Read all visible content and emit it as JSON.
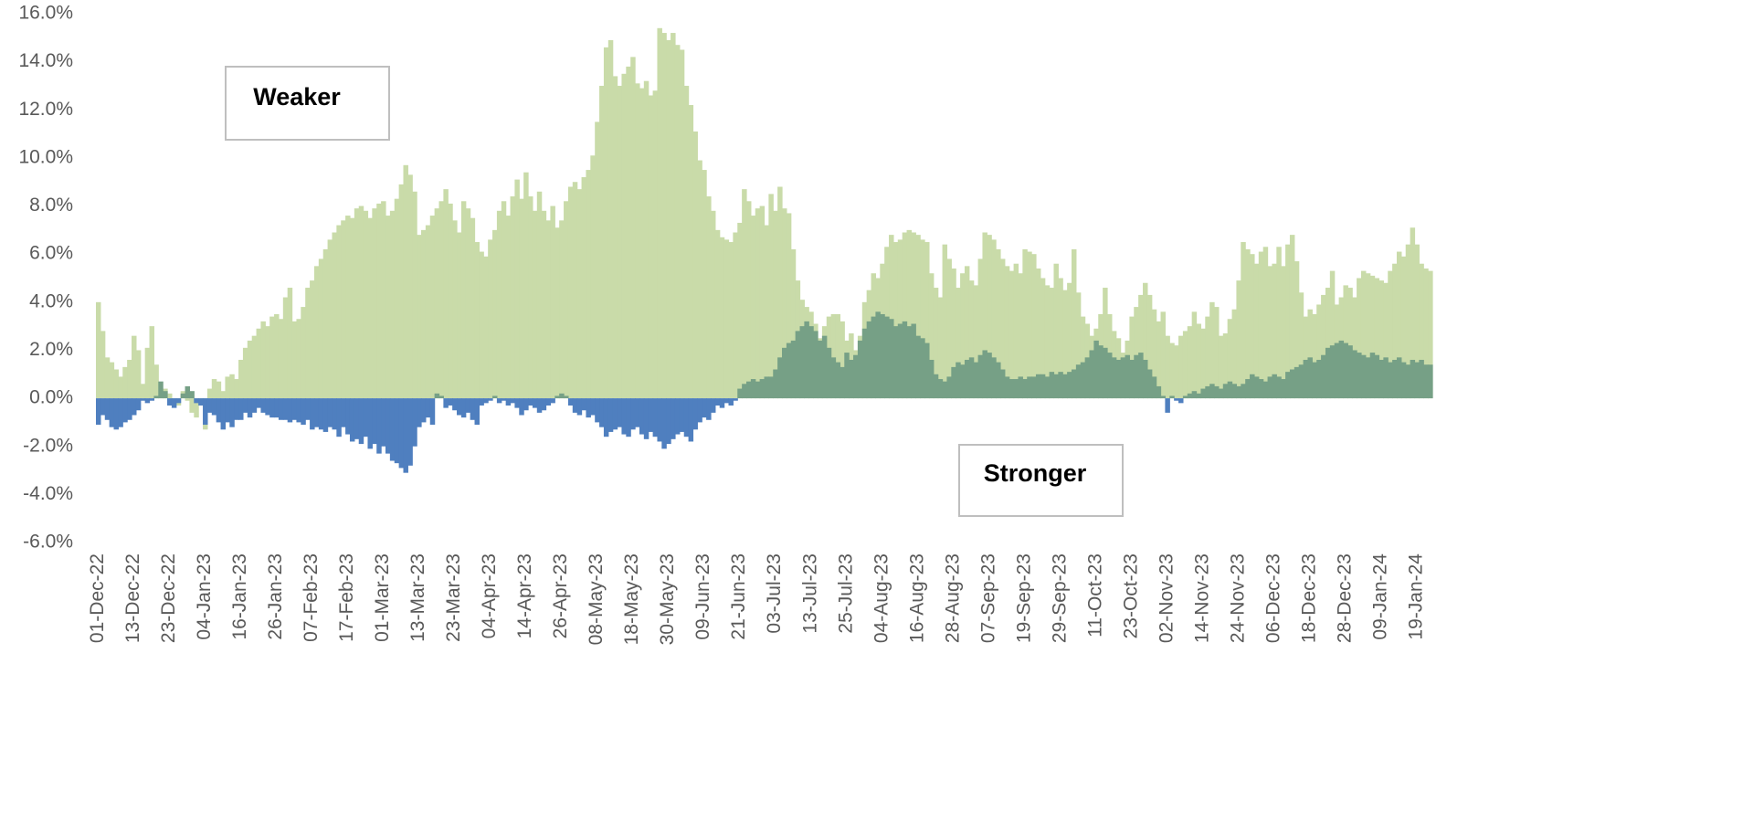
{
  "chart_data": {
    "type": "bar",
    "annotations": [
      "Weaker",
      "Stronger"
    ],
    "categories": [
      "01-Dec-22",
      null,
      null,
      null,
      null,
      null,
      null,
      null,
      "13-Dec-22",
      null,
      null,
      null,
      null,
      null,
      null,
      null,
      "23-Dec-22",
      null,
      null,
      null,
      null,
      null,
      null,
      null,
      "04-Jan-23",
      null,
      null,
      null,
      null,
      null,
      null,
      null,
      "16-Jan-23",
      null,
      null,
      null,
      null,
      null,
      null,
      null,
      "26-Jan-23",
      null,
      null,
      null,
      null,
      null,
      null,
      null,
      "07-Feb-23",
      null,
      null,
      null,
      null,
      null,
      null,
      null,
      "17-Feb-23",
      null,
      null,
      null,
      null,
      null,
      null,
      null,
      "01-Mar-23",
      null,
      null,
      null,
      null,
      null,
      null,
      null,
      "13-Mar-23",
      null,
      null,
      null,
      null,
      null,
      null,
      null,
      "23-Mar-23",
      null,
      null,
      null,
      null,
      null,
      null,
      null,
      "04-Apr-23",
      null,
      null,
      null,
      null,
      null,
      null,
      null,
      "14-Apr-23",
      null,
      null,
      null,
      null,
      null,
      null,
      null,
      "26-Apr-23",
      null,
      null,
      null,
      null,
      null,
      null,
      null,
      "08-May-23",
      null,
      null,
      null,
      null,
      null,
      null,
      null,
      "18-May-23",
      null,
      null,
      null,
      null,
      null,
      null,
      null,
      "30-May-23",
      null,
      null,
      null,
      null,
      null,
      null,
      null,
      "09-Jun-23",
      null,
      null,
      null,
      null,
      null,
      null,
      null,
      "21-Jun-23",
      null,
      null,
      null,
      null,
      null,
      null,
      null,
      "03-Jul-23",
      null,
      null,
      null,
      null,
      null,
      null,
      null,
      "13-Jul-23",
      null,
      null,
      null,
      null,
      null,
      null,
      null,
      "25-Jul-23",
      null,
      null,
      null,
      null,
      null,
      null,
      null,
      "04-Aug-23",
      null,
      null,
      null,
      null,
      null,
      null,
      null,
      "16-Aug-23",
      null,
      null,
      null,
      null,
      null,
      null,
      null,
      "28-Aug-23",
      null,
      null,
      null,
      null,
      null,
      null,
      null,
      "07-Sep-23",
      null,
      null,
      null,
      null,
      null,
      null,
      null,
      "19-Sep-23",
      null,
      null,
      null,
      null,
      null,
      null,
      null,
      "29-Sep-23",
      null,
      null,
      null,
      null,
      null,
      null,
      null,
      "11-Oct-23",
      null,
      null,
      null,
      null,
      null,
      null,
      null,
      "23-Oct-23",
      null,
      null,
      null,
      null,
      null,
      null,
      null,
      "02-Nov-23",
      null,
      null,
      null,
      null,
      null,
      null,
      null,
      "14-Nov-23",
      null,
      null,
      null,
      null,
      null,
      null,
      null,
      "24-Nov-23",
      null,
      null,
      null,
      null,
      null,
      null,
      null,
      "06-Dec-23",
      null,
      null,
      null,
      null,
      null,
      null,
      null,
      "18-Dec-23",
      null,
      null,
      null,
      null,
      null,
      null,
      null,
      "28-Dec-23",
      null,
      null,
      null,
      null,
      null,
      null,
      null,
      "09-Jan-24",
      null,
      null,
      null,
      null,
      null,
      null,
      null,
      "19-Jan-24",
      null,
      null,
      null
    ],
    "series": [
      {
        "color": "#c9dba9",
        "values": [
          4.0,
          2.8,
          1.7,
          1.5,
          1.2,
          0.9,
          1.3,
          1.6,
          2.6,
          2.0,
          0.6,
          2.1,
          3.0,
          1.4,
          0.3,
          0.4,
          0.2,
          -0.2,
          -0.3,
          0.3,
          -0.1,
          -0.6,
          -0.8,
          -0.3,
          -1.3,
          0.4,
          0.8,
          0.7,
          0.3,
          0.9,
          1.0,
          0.8,
          1.6,
          2.1,
          2.4,
          2.6,
          2.9,
          3.2,
          3.0,
          3.4,
          3.5,
          3.3,
          4.2,
          4.6,
          3.2,
          3.3,
          3.8,
          4.6,
          4.9,
          5.5,
          5.8,
          6.2,
          6.6,
          6.9,
          7.2,
          7.4,
          7.6,
          7.5,
          7.9,
          8.0,
          7.8,
          7.5,
          7.9,
          8.1,
          8.2,
          7.6,
          7.8,
          8.3,
          8.9,
          9.7,
          9.3,
          8.6,
          6.8,
          7.0,
          7.2,
          7.6,
          7.9,
          8.2,
          8.7,
          8.1,
          7.4,
          6.9,
          8.2,
          7.9,
          7.5,
          6.5,
          6.1,
          5.9,
          6.6,
          7.0,
          7.8,
          8.2,
          7.6,
          8.4,
          9.1,
          8.3,
          9.4,
          8.4,
          7.8,
          8.6,
          7.8,
          7.4,
          8.0,
          7.1,
          7.4,
          8.2,
          8.8,
          9.0,
          8.7,
          9.2,
          9.5,
          10.1,
          11.5,
          13.0,
          14.6,
          14.9,
          13.4,
          13.0,
          13.5,
          13.8,
          14.2,
          13.1,
          12.9,
          13.2,
          12.6,
          12.8,
          15.4,
          15.2,
          14.9,
          15.2,
          14.7,
          14.5,
          13.0,
          12.2,
          11.1,
          9.9,
          9.5,
          8.4,
          7.8,
          7.0,
          6.7,
          6.6,
          6.5,
          6.9,
          7.3,
          8.7,
          8.2,
          7.6,
          7.9,
          8.0,
          7.2,
          8.5,
          7.8,
          8.8,
          7.9,
          7.7,
          6.2,
          4.9,
          4.1,
          3.8,
          3.6,
          3.1,
          2.5,
          3.0,
          3.4,
          3.5,
          3.5,
          3.2,
          2.4,
          2.7,
          2.0,
          2.6,
          4.0,
          4.5,
          5.2,
          5.0,
          5.6,
          6.3,
          6.8,
          6.5,
          6.6,
          6.9,
          7.0,
          6.9,
          6.8,
          6.6,
          6.5,
          5.2,
          4.6,
          4.2,
          6.4,
          5.8,
          5.4,
          4.6,
          5.2,
          5.5,
          4.9,
          4.7,
          5.8,
          6.9,
          6.8,
          6.6,
          6.2,
          5.8,
          5.5,
          5.3,
          5.6,
          5.2,
          6.2,
          6.1,
          6.0,
          5.4,
          5.0,
          4.7,
          4.6,
          5.6,
          5.0,
          4.5,
          4.8,
          6.2,
          4.4,
          3.4,
          3.1,
          2.6,
          2.9,
          3.5,
          4.6,
          3.5,
          2.8,
          2.5,
          1.9,
          2.4,
          3.4,
          3.8,
          4.3,
          4.8,
          4.3,
          3.7,
          3.2,
          3.6,
          2.6,
          2.3,
          2.2,
          2.6,
          2.8,
          3.0,
          3.6,
          3.1,
          2.9,
          3.4,
          4.0,
          3.8,
          2.6,
          2.7,
          3.3,
          3.7,
          4.9,
          6.5,
          6.2,
          6.0,
          5.6,
          6.1,
          6.3,
          5.5,
          5.6,
          6.3,
          5.5,
          6.4,
          6.8,
          5.7,
          4.4,
          3.4,
          3.7,
          3.5,
          3.9,
          4.3,
          4.6,
          5.3,
          3.9,
          4.2,
          4.7,
          4.6,
          4.2,
          5.0,
          5.3,
          5.2,
          5.1,
          5.0,
          4.9,
          4.8,
          5.3,
          5.6,
          6.1,
          5.9,
          6.4,
          7.1,
          6.4,
          5.6,
          5.4,
          5.3
        ]
      },
      {
        "color": "#76a086",
        "negative_color": "#4f7fbf",
        "values": [
          -1.1,
          -0.7,
          -0.9,
          -1.2,
          -1.3,
          -1.2,
          -1.0,
          -0.9,
          -0.7,
          -0.5,
          -0.1,
          -0.2,
          -0.1,
          0.1,
          0.7,
          0.3,
          -0.3,
          -0.4,
          -0.2,
          0.2,
          0.5,
          0.3,
          -0.2,
          -0.3,
          -1.1,
          -0.6,
          -0.7,
          -1.0,
          -1.3,
          -1.0,
          -1.2,
          -0.9,
          -0.9,
          -0.6,
          -0.8,
          -0.6,
          -0.4,
          -0.6,
          -0.7,
          -0.8,
          -0.8,
          -0.9,
          -0.9,
          -1.0,
          -0.9,
          -1.0,
          -1.1,
          -0.9,
          -1.3,
          -1.2,
          -1.3,
          -1.4,
          -1.2,
          -1.3,
          -1.6,
          -1.2,
          -1.5,
          -1.8,
          -1.7,
          -1.9,
          -1.6,
          -2.1,
          -1.9,
          -2.3,
          -2.0,
          -2.3,
          -2.6,
          -2.7,
          -2.9,
          -3.1,
          -2.8,
          -2.0,
          -1.2,
          -1.0,
          -0.8,
          -1.1,
          0.2,
          0.1,
          -0.4,
          -0.3,
          -0.5,
          -0.7,
          -0.8,
          -0.6,
          -0.9,
          -1.1,
          -0.3,
          -0.2,
          -0.1,
          0.1,
          -0.2,
          -0.1,
          -0.3,
          -0.2,
          -0.4,
          -0.7,
          -0.5,
          -0.3,
          -0.4,
          -0.6,
          -0.5,
          -0.3,
          -0.2,
          0.1,
          0.2,
          0.1,
          -0.3,
          -0.6,
          -0.7,
          -0.5,
          -0.8,
          -0.7,
          -1.0,
          -1.2,
          -1.6,
          -1.4,
          -1.3,
          -1.2,
          -1.5,
          -1.6,
          -1.3,
          -1.2,
          -1.5,
          -1.7,
          -1.4,
          -1.6,
          -1.8,
          -2.1,
          -1.9,
          -1.7,
          -1.5,
          -1.4,
          -1.6,
          -1.8,
          -1.3,
          -1.0,
          -0.8,
          -0.9,
          -0.6,
          -0.3,
          -0.4,
          -0.2,
          -0.3,
          -0.1,
          0.4,
          0.6,
          0.7,
          0.8,
          0.7,
          0.8,
          0.9,
          0.9,
          1.2,
          1.7,
          2.1,
          2.3,
          2.4,
          2.8,
          3.0,
          3.2,
          3.0,
          2.8,
          2.4,
          2.6,
          2.1,
          1.7,
          1.5,
          1.3,
          1.9,
          1.6,
          1.8,
          2.4,
          2.9,
          3.2,
          3.4,
          3.6,
          3.5,
          3.4,
          3.3,
          3.0,
          3.1,
          3.2,
          3.0,
          3.1,
          2.6,
          2.5,
          2.3,
          1.6,
          1.0,
          0.8,
          0.7,
          0.9,
          1.3,
          1.5,
          1.4,
          1.6,
          1.7,
          1.5,
          1.8,
          2.0,
          1.9,
          1.7,
          1.5,
          1.2,
          0.9,
          0.8,
          0.8,
          0.9,
          0.8,
          0.9,
          0.9,
          1.0,
          1.0,
          0.9,
          1.1,
          1.0,
          1.1,
          1.0,
          1.1,
          1.2,
          1.4,
          1.5,
          1.7,
          2.0,
          2.4,
          2.2,
          2.1,
          1.9,
          1.7,
          1.6,
          1.7,
          1.8,
          1.6,
          1.8,
          1.9,
          1.6,
          1.2,
          0.9,
          0.5,
          0.1,
          -0.6,
          0.1,
          -0.1,
          -0.2,
          0.1,
          0.2,
          0.3,
          0.2,
          0.4,
          0.5,
          0.6,
          0.5,
          0.4,
          0.6,
          0.7,
          0.6,
          0.5,
          0.6,
          0.8,
          1.0,
          0.9,
          0.8,
          0.7,
          0.9,
          1.0,
          0.9,
          0.8,
          1.1,
          1.2,
          1.3,
          1.4,
          1.6,
          1.7,
          1.5,
          1.6,
          1.8,
          2.1,
          2.2,
          2.3,
          2.4,
          2.3,
          2.2,
          2.0,
          1.9,
          1.8,
          1.7,
          1.9,
          1.8,
          1.6,
          1.7,
          1.5,
          1.6,
          1.7,
          1.5,
          1.4,
          1.6,
          1.5,
          1.6,
          1.4,
          1.4
        ]
      }
    ],
    "ylim": [
      -6,
      16
    ],
    "yticks": [
      {
        "value": 16,
        "label": "16.0%"
      },
      {
        "value": 14,
        "label": "14.0%"
      },
      {
        "value": 12,
        "label": "12.0%"
      },
      {
        "value": 10,
        "label": "10.0%"
      },
      {
        "value": 8,
        "label": "8.0%"
      },
      {
        "value": 6,
        "label": "6.0%"
      },
      {
        "value": 4,
        "label": "4.0%"
      },
      {
        "value": 2,
        "label": "2.0%"
      },
      {
        "value": 0,
        "label": "0.0%"
      },
      {
        "value": -2,
        "label": "-2.0%"
      },
      {
        "value": -4,
        "label": "-4.0%"
      },
      {
        "value": -6,
        "label": "-6.0%"
      }
    ],
    "grid": false
  }
}
